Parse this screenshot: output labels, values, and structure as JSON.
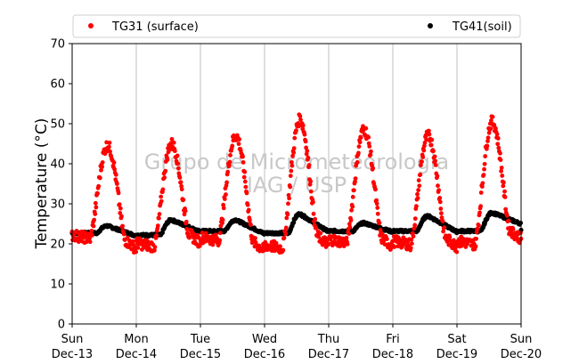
{
  "chart_data": {
    "type": "scatter",
    "ylabel": "Temperature (°C)",
    "xlabel": "",
    "ylim": [
      0,
      70
    ],
    "yticks": [
      0,
      10,
      20,
      30,
      40,
      50,
      60,
      70
    ],
    "xlim_days": [
      0,
      7
    ],
    "x_ticks": [
      {
        "day": "Sun",
        "date": "Dec-13"
      },
      {
        "day": "Mon",
        "date": "Dec-14"
      },
      {
        "day": "Tue",
        "date": "Dec-15"
      },
      {
        "day": "Wed",
        "date": "Dec-16"
      },
      {
        "day": "Thu",
        "date": "Dec-17"
      },
      {
        "day": "Fri",
        "date": "Dec-18"
      },
      {
        "day": "Sat",
        "date": "Dec-19"
      },
      {
        "day": "Sun",
        "date": "Dec-20"
      }
    ],
    "grid": "vertical",
    "legend_placement": "top (outside plot)",
    "watermark": [
      "Grupo de Micrometeorologia",
      "IAG / USP"
    ],
    "series": [
      {
        "name": "TG31 (surface)",
        "color": "#ff0000",
        "marker": "dot",
        "daily_min": [
          21,
          19,
          20.5,
          18.5,
          20,
          19.5,
          19.5
        ],
        "daily_max": [
          44.5,
          45,
          47,
          51,
          48.5,
          47,
          50.5
        ],
        "end_value": 21.5
      },
      {
        "name": "TG41(soil)",
        "color": "#000000",
        "marker": "dot",
        "daily_min": [
          22.5,
          22,
          23,
          22.5,
          23,
          23,
          23
        ],
        "daily_max": [
          24.5,
          26,
          26,
          27.5,
          25.2,
          27,
          27.8
        ],
        "end_value": 25
      }
    ]
  }
}
